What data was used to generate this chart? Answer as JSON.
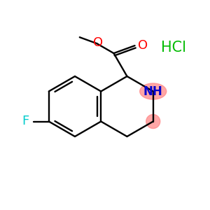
{
  "background_color": "#ffffff",
  "bond_color": "#000000",
  "F_color": "#00cccc",
  "O_color": "#ff0000",
  "N_color": "#0000cc",
  "HCl_color": "#00bb00",
  "NH_highlight_color": "#ff8888",
  "CH2_highlight_color": "#ff8888",
  "F_label": "F",
  "N_label": "NH",
  "O_label": "O",
  "HCl_label": "HCl",
  "bond_lw": 1.7,
  "font_size_atom": 13,
  "font_size_HCl": 15
}
